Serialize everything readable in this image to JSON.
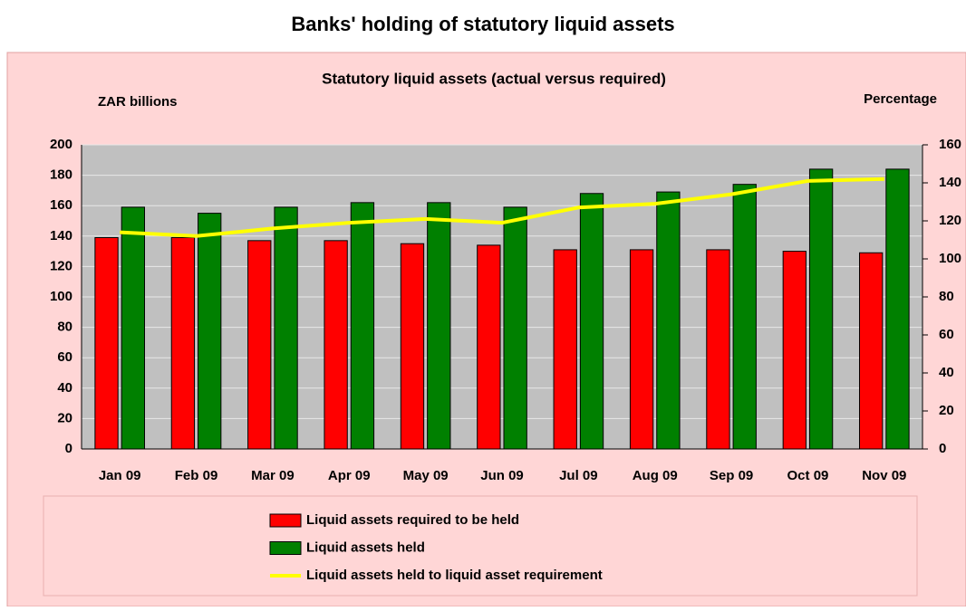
{
  "chart_data": {
    "type": "bar",
    "title": "Banks' holding of statutory liquid assets",
    "subtitle": "Statutory liquid assets (actual versus required)",
    "ylabel": "ZAR billions",
    "y2label": "Percentage",
    "categories": [
      "Jan 09",
      "Feb 09",
      "Mar 09",
      "Apr 09",
      "May 09",
      "Jun 09",
      "Jul 09",
      "Aug 09",
      "Sep 09",
      "Oct 09",
      "Nov 09"
    ],
    "series": [
      {
        "name": "Liquid assets required to be held",
        "color": "#ff0000",
        "type": "bar",
        "values": [
          139,
          139,
          137,
          137,
          135,
          134,
          131,
          131,
          131,
          130,
          129
        ]
      },
      {
        "name": "Liquid assets held",
        "color": "#008000",
        "type": "bar",
        "values": [
          159,
          155,
          159,
          162,
          162,
          159,
          168,
          169,
          174,
          184,
          184
        ]
      },
      {
        "name": "Liquid assets held to liquid asset requirement",
        "color": "#ffff00",
        "type": "line",
        "axis": "y2",
        "values": [
          114,
          112,
          116,
          119,
          121,
          119,
          127,
          129,
          134,
          141,
          142
        ]
      }
    ],
    "ylim": [
      0,
      200
    ],
    "yticks": [
      0,
      20,
      40,
      60,
      80,
      100,
      120,
      140,
      160,
      180,
      200
    ],
    "y2lim": [
      0,
      160
    ],
    "y2ticks": [
      0,
      20,
      40,
      60,
      80,
      100,
      120,
      140,
      160
    ],
    "grid": true
  }
}
